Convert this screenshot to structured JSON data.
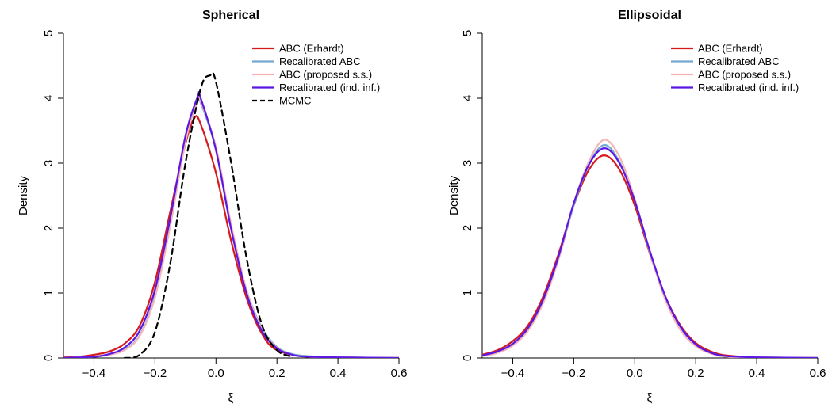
{
  "colors": {
    "abc_erhardt": "#d7191c",
    "recalibrated_abc": "#74a9cf",
    "abc_proposed": "#f4b6b6",
    "recalibrated_ind": "#5a17e6",
    "mcmc": "#000000"
  },
  "chart_data": [
    {
      "type": "line",
      "title": "Spherical",
      "xlabel": "ξ",
      "ylabel": "Density",
      "xlim": [
        -0.5,
        0.6
      ],
      "ylim": [
        0,
        5
      ],
      "xticks": [
        "-0.4",
        "-0.2",
        "0.0",
        "0.2",
        "0.4",
        "0.6"
      ],
      "xtick_values": [
        -0.4,
        -0.2,
        0.0,
        0.2,
        0.4,
        0.6
      ],
      "yticks": [
        "0",
        "1",
        "2",
        "3",
        "4",
        "5"
      ],
      "ytick_values": [
        0,
        1,
        2,
        3,
        4,
        5
      ],
      "legend_position": "top-right",
      "series": [
        {
          "name": "ABC (Erhardt)",
          "color_key": "abc_erhardt",
          "dash": "solid",
          "x": [
            -0.5,
            -0.45,
            -0.4,
            -0.35,
            -0.3,
            -0.25,
            -0.2,
            -0.15,
            -0.1,
            -0.07,
            -0.05,
            0.0,
            0.05,
            0.1,
            0.15,
            0.2,
            0.3,
            0.4,
            0.6
          ],
          "y": [
            0.01,
            0.02,
            0.05,
            0.1,
            0.22,
            0.5,
            1.17,
            2.25,
            3.3,
            3.7,
            3.6,
            2.85,
            1.8,
            0.93,
            0.38,
            0.12,
            0.02,
            0.01,
            0.0
          ]
        },
        {
          "name": "Recalibrated ABC",
          "color_key": "recalibrated_abc",
          "dash": "solid",
          "x": [
            -0.5,
            -0.4,
            -0.35,
            -0.3,
            -0.25,
            -0.2,
            -0.15,
            -0.1,
            -0.06,
            -0.05,
            0.0,
            0.05,
            0.1,
            0.15,
            0.2,
            0.25,
            0.3,
            0.4,
            0.6
          ],
          "y": [
            0.0,
            0.02,
            0.05,
            0.13,
            0.35,
            0.95,
            2.05,
            3.35,
            3.95,
            3.93,
            3.22,
            2.02,
            1.05,
            0.47,
            0.17,
            0.06,
            0.03,
            0.01,
            0.0
          ]
        },
        {
          "name": "ABC (proposed s.s.)",
          "color_key": "abc_proposed",
          "dash": "solid",
          "x": [
            -0.5,
            -0.4,
            -0.35,
            -0.3,
            -0.25,
            -0.2,
            -0.15,
            -0.1,
            -0.06,
            -0.05,
            0.0,
            0.05,
            0.1,
            0.15,
            0.2,
            0.25,
            0.3,
            0.4,
            0.6
          ],
          "y": [
            0.0,
            0.02,
            0.05,
            0.12,
            0.34,
            0.93,
            2.03,
            3.33,
            3.97,
            3.95,
            3.25,
            2.05,
            1.05,
            0.45,
            0.16,
            0.05,
            0.02,
            0.01,
            0.0
          ]
        },
        {
          "name": "Recalibrated (ind. inf.)",
          "color_key": "recalibrated_ind",
          "dash": "solid",
          "x": [
            -0.5,
            -0.4,
            -0.35,
            -0.3,
            -0.25,
            -0.2,
            -0.15,
            -0.1,
            -0.06,
            -0.05,
            0.0,
            0.05,
            0.1,
            0.15,
            0.2,
            0.25,
            0.3,
            0.4,
            0.6
          ],
          "y": [
            0.0,
            0.02,
            0.06,
            0.16,
            0.42,
            1.05,
            2.15,
            3.42,
            4.02,
            4.0,
            3.2,
            1.98,
            1.0,
            0.42,
            0.15,
            0.05,
            0.02,
            0.01,
            0.0
          ]
        },
        {
          "name": "MCMC",
          "color_key": "mcmc",
          "dash": "dashed",
          "x": [
            -0.3,
            -0.25,
            -0.2,
            -0.15,
            -0.1,
            -0.05,
            -0.02,
            0.0,
            0.05,
            0.1,
            0.15,
            0.2,
            0.25
          ],
          "y": [
            0.0,
            0.05,
            0.4,
            1.45,
            3.0,
            4.15,
            4.35,
            4.25,
            3.0,
            1.55,
            0.52,
            0.12,
            0.02
          ]
        }
      ]
    },
    {
      "type": "line",
      "title": "Ellipsoidal",
      "xlabel": "ξ",
      "ylabel": "Density",
      "xlim": [
        -0.5,
        0.6
      ],
      "ylim": [
        0,
        5
      ],
      "xticks": [
        "-0.4",
        "-0.2",
        "0.0",
        "0.2",
        "0.4",
        "0.6"
      ],
      "xtick_values": [
        -0.4,
        -0.2,
        0.0,
        0.2,
        0.4,
        0.6
      ],
      "yticks": [
        "0",
        "1",
        "2",
        "3",
        "4",
        "5"
      ],
      "ytick_values": [
        0,
        1,
        2,
        3,
        4,
        5
      ],
      "legend_position": "top-right",
      "series": [
        {
          "name": "ABC (Erhardt)",
          "color_key": "abc_erhardt",
          "dash": "solid",
          "x": [
            -0.5,
            -0.45,
            -0.4,
            -0.35,
            -0.3,
            -0.25,
            -0.2,
            -0.15,
            -0.1,
            -0.05,
            0.0,
            0.05,
            0.1,
            0.15,
            0.2,
            0.25,
            0.3,
            0.4,
            0.6
          ],
          "y": [
            0.05,
            0.12,
            0.26,
            0.5,
            0.95,
            1.6,
            2.35,
            2.9,
            3.12,
            2.9,
            2.35,
            1.6,
            0.95,
            0.5,
            0.23,
            0.1,
            0.04,
            0.01,
            0.0
          ]
        },
        {
          "name": "Recalibrated ABC",
          "color_key": "recalibrated_abc",
          "dash": "solid",
          "x": [
            -0.5,
            -0.45,
            -0.4,
            -0.35,
            -0.3,
            -0.25,
            -0.2,
            -0.15,
            -0.1,
            -0.05,
            0.0,
            0.05,
            0.1,
            0.15,
            0.2,
            0.25,
            0.3,
            0.4,
            0.6
          ],
          "y": [
            0.03,
            0.08,
            0.2,
            0.43,
            0.86,
            1.52,
            2.35,
            2.98,
            3.28,
            3.02,
            2.42,
            1.62,
            0.92,
            0.45,
            0.19,
            0.07,
            0.02,
            0.01,
            0.0
          ]
        },
        {
          "name": "ABC (proposed s.s.)",
          "color_key": "abc_proposed",
          "dash": "solid",
          "x": [
            -0.5,
            -0.45,
            -0.4,
            -0.35,
            -0.3,
            -0.25,
            -0.2,
            -0.15,
            -0.1,
            -0.05,
            0.0,
            0.05,
            0.1,
            0.15,
            0.2,
            0.25,
            0.3,
            0.4,
            0.6
          ],
          "y": [
            0.03,
            0.08,
            0.19,
            0.42,
            0.85,
            1.52,
            2.38,
            3.03,
            3.36,
            3.1,
            2.45,
            1.62,
            0.9,
            0.43,
            0.18,
            0.07,
            0.02,
            0.01,
            0.0
          ]
        },
        {
          "name": "Recalibrated (ind. inf.)",
          "color_key": "recalibrated_ind",
          "dash": "solid",
          "x": [
            -0.5,
            -0.45,
            -0.4,
            -0.35,
            -0.3,
            -0.25,
            -0.2,
            -0.15,
            -0.1,
            -0.05,
            0.0,
            0.05,
            0.1,
            0.15,
            0.2,
            0.25,
            0.3,
            0.4,
            0.6
          ],
          "y": [
            0.04,
            0.1,
            0.22,
            0.46,
            0.9,
            1.56,
            2.38,
            2.98,
            3.23,
            3.0,
            2.42,
            1.64,
            0.95,
            0.48,
            0.21,
            0.08,
            0.03,
            0.01,
            0.0
          ]
        }
      ]
    }
  ]
}
